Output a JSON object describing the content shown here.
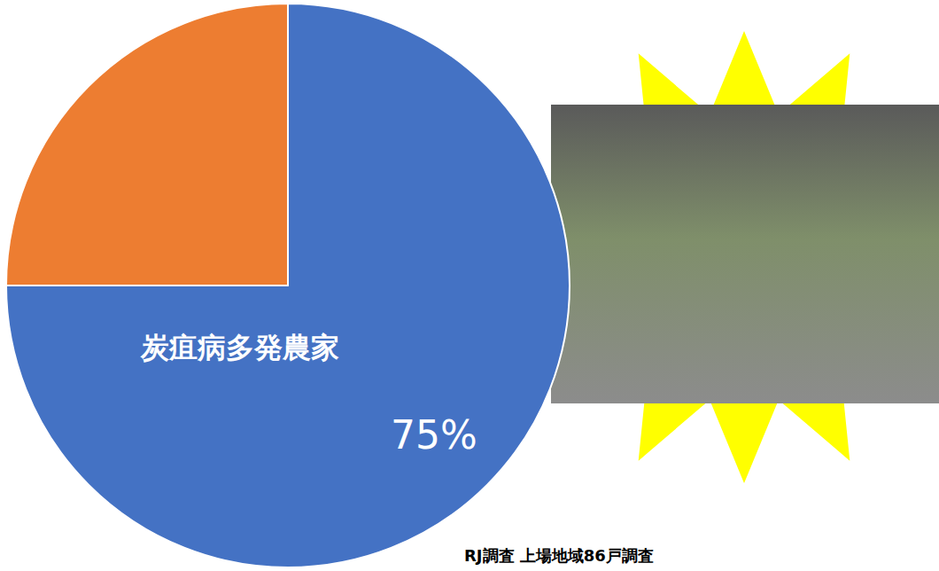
{
  "chart_data": {
    "type": "pie",
    "categories": [
      "炭疽病多発農家",
      null
    ],
    "values": [
      75,
      25
    ],
    "value_labels": [
      "75%",
      null
    ],
    "colors": [
      "#4472c4",
      "#ed7d31"
    ],
    "data_labels": true,
    "annotations": [
      "RJ調査 上場地域86戸調査"
    ]
  }
}
